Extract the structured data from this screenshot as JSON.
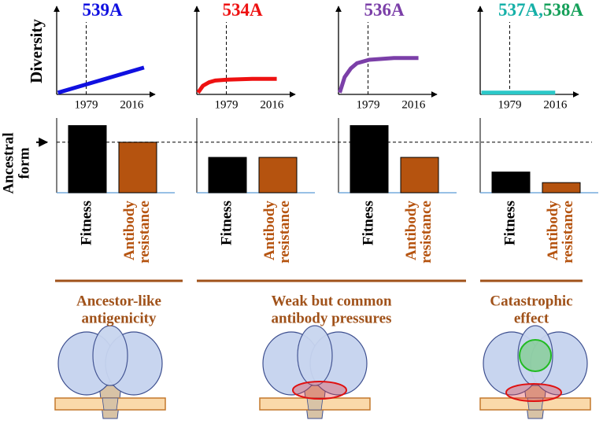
{
  "chart_data": [
    {
      "type": "line",
      "title": [
        "539A"
      ],
      "title_colors": [
        "#1010e0"
      ],
      "ylabel": "Diversity",
      "xlim": [
        1955,
        2035
      ],
      "ylim": [
        0,
        1
      ],
      "xticks": [
        1979,
        2016
      ],
      "vline": 1979,
      "series": [
        {
          "color": "#1010e0",
          "x": [
            1956,
            2026
          ],
          "values": [
            0.02,
            0.31
          ]
        }
      ]
    },
    {
      "type": "line",
      "title": [
        "534A"
      ],
      "title_colors": [
        "#ee1111"
      ],
      "xlim": [
        1955,
        2035
      ],
      "ylim": [
        0,
        1
      ],
      "xticks": [
        1979,
        2016
      ],
      "vline": 1979,
      "series": [
        {
          "color": "#ee1111",
          "x": [
            1956,
            1960,
            1965,
            1970,
            1980,
            2000,
            2020
          ],
          "values": [
            0.02,
            0.1,
            0.14,
            0.16,
            0.17,
            0.18,
            0.18
          ]
        }
      ]
    },
    {
      "type": "line",
      "title": [
        "536A"
      ],
      "title_colors": [
        "#7b3fa8"
      ],
      "xlim": [
        1955,
        2035
      ],
      "ylim": [
        0,
        1
      ],
      "xticks": [
        1979,
        2016
      ],
      "vline": 1979,
      "series": [
        {
          "color": "#7b3fa8",
          "x": [
            1956,
            1960,
            1965,
            1970,
            1980,
            2000,
            2020
          ],
          "values": [
            0.02,
            0.2,
            0.3,
            0.36,
            0.4,
            0.42,
            0.42
          ]
        }
      ]
    },
    {
      "type": "line",
      "title": [
        "537A,",
        "538A"
      ],
      "title_colors": [
        "#16b0a8",
        "#16a05a"
      ],
      "xlim": [
        1955,
        2035
      ],
      "ylim": [
        0,
        1
      ],
      "xticks": [
        1979,
        2016
      ],
      "vline": 1979,
      "series": [
        {
          "color": "#2cc8c8",
          "x": [
            1956,
            2016
          ],
          "values": [
            0.02,
            0.02
          ]
        }
      ]
    },
    {
      "type": "bar",
      "ylabel": [
        "Ancestral",
        "form"
      ],
      "reference": 1,
      "ylim": [
        0,
        1.48
      ],
      "categories": [
        [
          "Fitness"
        ],
        [
          "Antibody",
          "resistance"
        ]
      ],
      "colors": [
        "#000000",
        "#b5530f"
      ],
      "values": [
        1.33,
        1.0
      ]
    },
    {
      "type": "bar",
      "ylim": [
        0,
        1.48
      ],
      "categories": [
        [
          "Fitness"
        ],
        [
          "Antibody",
          "resistance"
        ]
      ],
      "colors": [
        "#000000",
        "#b5530f"
      ],
      "values": [
        0.7,
        0.7
      ]
    },
    {
      "type": "bar",
      "ylim": [
        0,
        1.48
      ],
      "categories": [
        [
          "Fitness"
        ],
        [
          "Antibody",
          "resistance"
        ]
      ],
      "colors": [
        "#000000",
        "#b5530f"
      ],
      "values": [
        1.33,
        0.7
      ]
    },
    {
      "type": "bar",
      "ylim": [
        0,
        1.48
      ],
      "categories": [
        [
          "Fitness"
        ],
        [
          "Antibody",
          "resistance"
        ]
      ],
      "colors": [
        "#000000",
        "#b5530f"
      ],
      "values": [
        0.41,
        0.2
      ]
    }
  ],
  "groups": [
    {
      "label": [
        "Ancestor-like",
        "antigenicity"
      ]
    },
    {
      "label": [
        "Weak but common",
        "antibody pressures"
      ]
    },
    {
      "label": [
        "Catastrophic",
        "effect"
      ]
    }
  ]
}
